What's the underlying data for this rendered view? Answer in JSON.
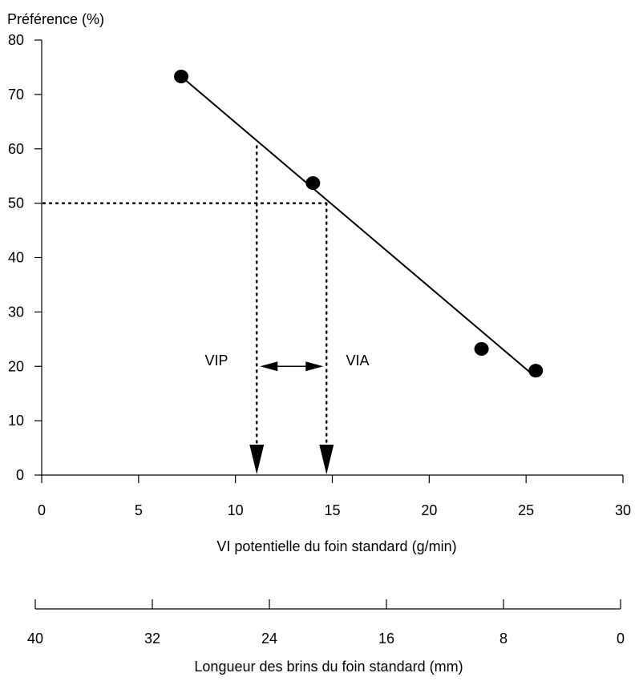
{
  "chart_data": {
    "type": "scatter",
    "title": "",
    "ylabel": "Préférence (%)",
    "xlabel": "VI potentielle du foin standard (g/min)",
    "xlim": [
      0,
      30
    ],
    "ylim": [
      0,
      80
    ],
    "x_ticks": [
      0,
      5,
      10,
      15,
      20,
      25,
      30
    ],
    "y_ticks": [
      0,
      10,
      20,
      30,
      40,
      50,
      60,
      70,
      80
    ],
    "grid": false,
    "series": [
      {
        "points": [
          {
            "x": 7.2,
            "y": 73.3
          },
          {
            "x": 14.0,
            "y": 53.7
          },
          {
            "x": 22.7,
            "y": 23.2
          },
          {
            "x": 25.5,
            "y": 19.2
          }
        ]
      }
    ],
    "fit_line": {
      "x": [
        7.2,
        25.5
      ],
      "y": [
        73.3,
        18.0
      ]
    },
    "reference_level_y": 50,
    "reference_x": {
      "vip": 11.1,
      "via": 14.7
    },
    "annotations": {
      "vip": "VIP",
      "via": "VIA",
      "span_y": 20
    },
    "secondary_axis": {
      "label": "Longueur des brins du foin standard (mm)",
      "ticks": [
        40,
        32,
        24,
        16,
        8,
        0
      ]
    }
  }
}
